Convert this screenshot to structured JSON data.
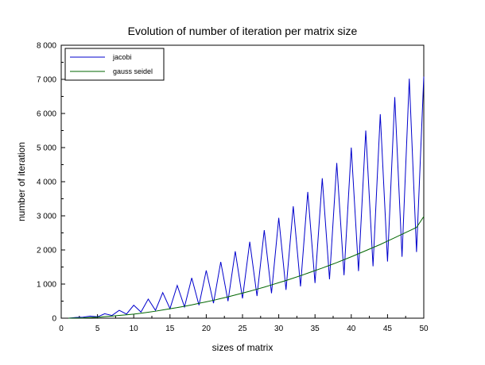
{
  "chart_data": {
    "type": "line",
    "title": "Evolution of number of iteration per matrix size",
    "xlabel": "sizes of matrix",
    "ylabel": "number of iteration",
    "xlim": [
      0,
      50
    ],
    "ylim": [
      0,
      8000
    ],
    "x_ticks": [
      "0",
      "5",
      "10",
      "15",
      "20",
      "25",
      "30",
      "35",
      "40",
      "45",
      "50"
    ],
    "y_ticks": [
      "0",
      "1 000",
      "2 000",
      "3 000",
      "4 000",
      "5 000",
      "6 000",
      "7 000",
      "8 000"
    ],
    "grid": false,
    "legend_position": "top-left",
    "series": [
      {
        "name": "jacobi",
        "color": "#0000cc",
        "x": [
          1,
          2,
          3,
          4,
          5,
          6,
          7,
          8,
          9,
          10,
          11,
          12,
          13,
          14,
          15,
          16,
          17,
          18,
          19,
          20,
          21,
          22,
          23,
          24,
          25,
          26,
          27,
          28,
          29,
          30,
          31,
          32,
          33,
          34,
          35,
          36,
          37,
          38,
          39,
          40,
          41,
          42,
          43,
          44,
          45,
          46,
          47,
          48,
          49,
          50
        ],
        "values": [
          1,
          20,
          30,
          60,
          40,
          130,
          80,
          230,
          120,
          380,
          180,
          560,
          230,
          750,
          280,
          960,
          330,
          1180,
          380,
          1400,
          440,
          1650,
          500,
          1960,
          580,
          2240,
          650,
          2580,
          730,
          2940,
          830,
          3280,
          930,
          3700,
          1030,
          4100,
          1140,
          4550,
          1260,
          5000,
          1380,
          5500,
          1520,
          5980,
          1660,
          6480,
          1800,
          7020,
          1940,
          7080
        ]
      },
      {
        "name": "gauss seidel",
        "color": "#006600",
        "x": [
          1,
          2,
          3,
          4,
          5,
          6,
          7,
          8,
          9,
          10,
          11,
          12,
          13,
          14,
          15,
          16,
          17,
          18,
          19,
          20,
          21,
          22,
          23,
          24,
          25,
          26,
          27,
          28,
          29,
          30,
          31,
          32,
          33,
          34,
          35,
          36,
          37,
          38,
          39,
          40,
          41,
          42,
          43,
          44,
          45,
          46,
          47,
          48,
          49,
          50
        ],
        "values": [
          1,
          5,
          10,
          20,
          30,
          45,
          60,
          80,
          100,
          120,
          145,
          175,
          205,
          240,
          275,
          310,
          350,
          390,
          435,
          480,
          525,
          575,
          625,
          680,
          735,
          790,
          850,
          910,
          975,
          1040,
          1105,
          1175,
          1245,
          1320,
          1395,
          1470,
          1550,
          1630,
          1715,
          1800,
          1890,
          1980,
          2070,
          2160,
          2260,
          2360,
          2460,
          2560,
          2660,
          2980
        ]
      }
    ]
  }
}
